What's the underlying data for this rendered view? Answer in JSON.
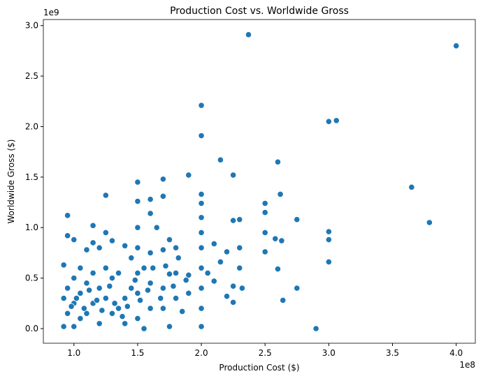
{
  "chart_data": {
    "type": "scatter",
    "title": "Production Cost vs. Worldwide Gross",
    "x_label": "Production Cost ($)",
    "y_label": "Worldwide Gross ($)",
    "x_offset_label": "1e8",
    "y_offset_label": "1e9",
    "xlim": [
      76000000,
      415000000
    ],
    "ylim": [
      -145000000,
      3060000000
    ],
    "xticks": [
      {
        "value": 100000000,
        "label": "1.0"
      },
      {
        "value": 150000000,
        "label": "1.5"
      },
      {
        "value": 200000000,
        "label": "2.0"
      },
      {
        "value": 250000000,
        "label": "2.5"
      },
      {
        "value": 300000000,
        "label": "3.0"
      },
      {
        "value": 350000000,
        "label": "3.5"
      },
      {
        "value": 400000000,
        "label": "4.0"
      }
    ],
    "yticks": [
      {
        "value": 0,
        "label": "0.0"
      },
      {
        "value": 500000000,
        "label": "0.5"
      },
      {
        "value": 1000000000,
        "label": "1.0"
      },
      {
        "value": 1500000000,
        "label": "1.5"
      },
      {
        "value": 2000000000,
        "label": "2.0"
      },
      {
        "value": 2500000000,
        "label": "2.5"
      },
      {
        "value": 3000000000,
        "label": "3.0"
      }
    ],
    "grid": false,
    "color": "#1f77b4",
    "x": [
      400000000,
      237000000,
      306000000,
      300000000,
      200000000,
      200000000,
      215000000,
      260000000,
      225000000,
      190000000,
      170000000,
      150000000,
      365000000,
      262000000,
      125000000,
      200000000,
      160000000,
      150000000,
      250000000,
      200000000,
      170000000,
      379000000,
      275000000,
      230000000,
      225000000,
      250000000,
      95000000,
      115000000,
      300000000,
      300000000,
      300000000,
      290000000,
      275000000,
      264000000,
      260000000,
      250000000,
      250000000,
      258000000,
      263000000,
      230000000,
      230000000,
      232000000,
      225000000,
      225000000,
      220000000,
      220000000,
      215000000,
      210000000,
      210000000,
      205000000,
      200000000,
      200000000,
      200000000,
      200000000,
      200000000,
      200000000,
      200000000,
      190000000,
      190000000,
      185000000,
      180000000,
      180000000,
      180000000,
      175000000,
      175000000,
      175000000,
      170000000,
      170000000,
      170000000,
      165000000,
      160000000,
      160000000,
      160000000,
      160000000,
      155000000,
      155000000,
      150000000,
      150000000,
      150000000,
      150000000,
      150000000,
      145000000,
      145000000,
      140000000,
      140000000,
      140000000,
      135000000,
      135000000,
      130000000,
      130000000,
      130000000,
      125000000,
      125000000,
      125000000,
      120000000,
      120000000,
      120000000,
      115000000,
      115000000,
      115000000,
      110000000,
      110000000,
      110000000,
      105000000,
      105000000,
      105000000,
      100000000,
      100000000,
      100000000,
      100000000,
      95000000,
      95000000,
      95000000,
      92000000,
      92000000,
      92000000,
      98000000,
      102000000,
      108000000,
      112000000,
      118000000,
      122000000,
      128000000,
      132000000,
      138000000,
      142000000,
      148000000,
      152000000,
      158000000,
      162000000,
      168000000,
      172000000,
      178000000,
      182000000,
      188000000
    ],
    "y": [
      2800000000,
      2910000000,
      2060000000,
      2050000000,
      2210000000,
      1910000000,
      1670000000,
      1650000000,
      1520000000,
      1520000000,
      1480000000,
      1450000000,
      1400000000,
      1330000000,
      1320000000,
      1330000000,
      1280000000,
      1260000000,
      1240000000,
      1240000000,
      1310000000,
      1050000000,
      1080000000,
      1080000000,
      1070000000,
      1150000000,
      1120000000,
      1020000000,
      960000000,
      880000000,
      660000000,
      0,
      400000000,
      280000000,
      590000000,
      950000000,
      760000000,
      890000000,
      870000000,
      800000000,
      600000000,
      400000000,
      260000000,
      420000000,
      760000000,
      320000000,
      660000000,
      840000000,
      470000000,
      550000000,
      1100000000,
      950000000,
      800000000,
      600000000,
      400000000,
      200000000,
      20000000,
      530000000,
      350000000,
      170000000,
      800000000,
      550000000,
      300000000,
      880000000,
      540000000,
      20000000,
      780000000,
      400000000,
      200000000,
      1000000000,
      1140000000,
      750000000,
      450000000,
      200000000,
      600000000,
      0,
      1000000000,
      800000000,
      550000000,
      350000000,
      100000000,
      700000000,
      400000000,
      820000000,
      300000000,
      50000000,
      550000000,
      200000000,
      870000000,
      500000000,
      150000000,
      950000000,
      600000000,
      300000000,
      800000000,
      400000000,
      50000000,
      850000000,
      550000000,
      250000000,
      780000000,
      450000000,
      150000000,
      600000000,
      350000000,
      100000000,
      880000000,
      500000000,
      250000000,
      20000000,
      920000000,
      400000000,
      150000000,
      630000000,
      300000000,
      20000000,
      220000000,
      300000000,
      200000000,
      380000000,
      280000000,
      180000000,
      420000000,
      250000000,
      120000000,
      220000000,
      480000000,
      280000000,
      380000000,
      600000000,
      300000000,
      620000000,
      420000000,
      700000000,
      480000000
    ]
  }
}
